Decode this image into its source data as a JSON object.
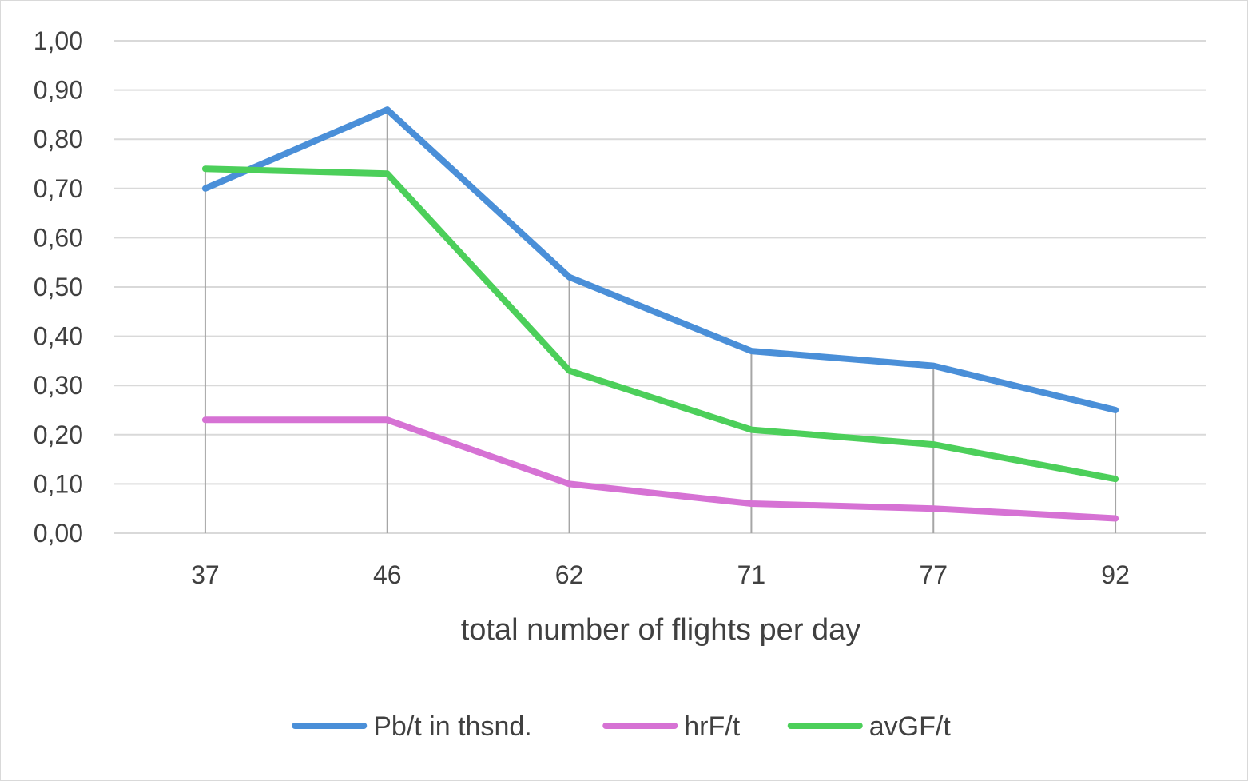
{
  "chart_data": {
    "type": "line",
    "title": "",
    "xlabel": "total number of flights per day",
    "ylabel": "",
    "categories": [
      "37",
      "46",
      "62",
      "71",
      "77",
      "92"
    ],
    "ylim": [
      0,
      1.0
    ],
    "yticks": [
      "0,00",
      "0,10",
      "0,20",
      "0,30",
      "0,40",
      "0,50",
      "0,60",
      "0,70",
      "0,80",
      "0,90",
      "1,00"
    ],
    "grid": true,
    "drop_lines": true,
    "legend_position": "bottom",
    "series": [
      {
        "name": "Pb/t in thsnd.",
        "color": "#4a8fd8",
        "values": [
          0.7,
          0.86,
          0.52,
          0.37,
          0.34,
          0.25
        ]
      },
      {
        "name": "hrF/t",
        "color": "#d672d4",
        "values": [
          0.23,
          0.23,
          0.1,
          0.06,
          0.05,
          0.03
        ]
      },
      {
        "name": "avGF/t",
        "color": "#4ccf5a",
        "values": [
          0.74,
          0.73,
          0.33,
          0.21,
          0.18,
          0.11
        ]
      }
    ]
  }
}
